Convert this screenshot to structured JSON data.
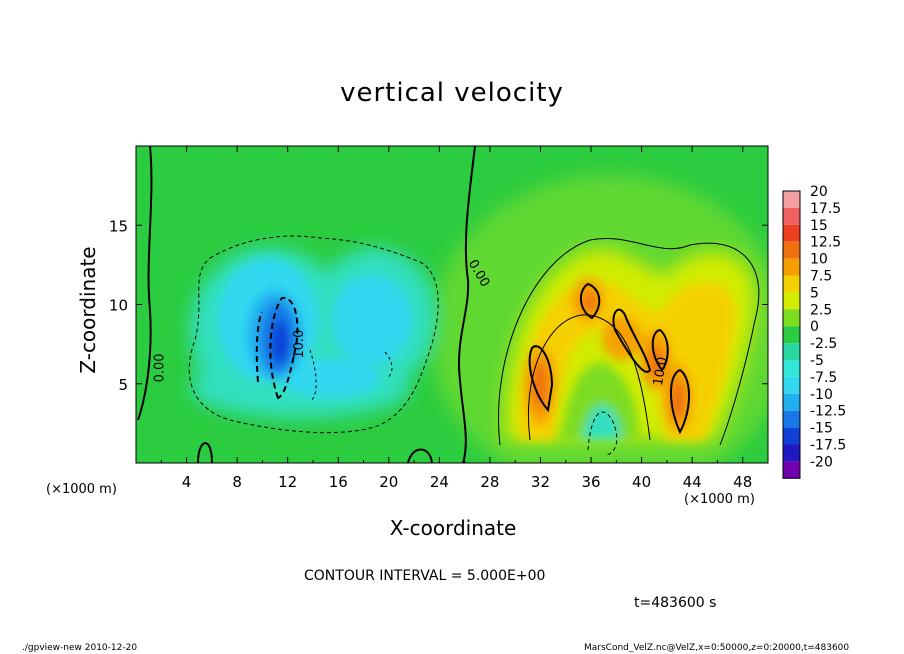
{
  "page": {
    "footer_left": "./gpview-new  2010-12-20",
    "footer_right": "MarsCond_VelZ.nc@VelZ,x=0:50000,z=0:20000,t=483600",
    "time_label": "t=483600 s",
    "contour_interval_label": "CONTOUR INTERVAL = 5.000E+00"
  },
  "chart_data": {
    "type": "heatmap",
    "title": "vertical velocity",
    "xlabel": "X-coordinate",
    "ylabel": "Z-coordinate",
    "x_unit_label": "(×1000 m)",
    "y_unit_label": "(×1000 m)",
    "xlim": [
      0,
      50
    ],
    "ylim": [
      0,
      20
    ],
    "x_ticks": [
      4,
      8,
      12,
      16,
      20,
      24,
      28,
      32,
      36,
      40,
      44,
      48
    ],
    "y_ticks": [
      5,
      10,
      15
    ],
    "contour_interval": 5.0,
    "contour_labels": [
      {
        "text": "0.00",
        "x": 1.8,
        "z": 6.0,
        "rotation": -90
      },
      {
        "text": "10.0",
        "x": 12.8,
        "z": 7.5,
        "rotation": -90
      },
      {
        "text": "0.00",
        "x": 27.2,
        "z": 12.0,
        "rotation": 60
      },
      {
        "text": "10.0",
        "x": 41.4,
        "z": 5.8,
        "rotation": -80
      }
    ],
    "colorbar": {
      "levels": [
        "20",
        "17.5",
        "15",
        "12.5",
        "10",
        "7.5",
        "5",
        "2.5",
        "0",
        "-2.5",
        "-5",
        "-7.5",
        "-10",
        "-12.5",
        "-15",
        "-17.5",
        "-20"
      ],
      "colors": [
        "#f5a0a0",
        "#f06060",
        "#ee4020",
        "#f07010",
        "#f5a000",
        "#f5d000",
        "#d2ec00",
        "#7cdc20",
        "#2ccc40",
        "#28d8a0",
        "#30e8d8",
        "#30d8f0",
        "#20b0f0",
        "#1878e8",
        "#1040d8",
        "#2018c0",
        "#7000b0"
      ]
    },
    "updraft_cores": [
      {
        "x": 31.5,
        "z": 5.5,
        "peak": 10.5
      },
      {
        "x": 35.2,
        "z": 10.2,
        "peak": 10.5
      },
      {
        "x": 38.3,
        "z": 7.8,
        "peak": 11.5
      },
      {
        "x": 40.6,
        "z": 6.6,
        "peak": 12.0
      },
      {
        "x": 42.6,
        "z": 4.2,
        "peak": 12.5
      }
    ],
    "downdraft_cores": [
      {
        "x": 11.2,
        "z": 7.8,
        "peak": -14.0
      },
      {
        "x": 17.0,
        "z": 6.5,
        "peak": -6.0
      },
      {
        "x": 21.0,
        "z": 10.0,
        "peak": -5.5
      }
    ]
  }
}
